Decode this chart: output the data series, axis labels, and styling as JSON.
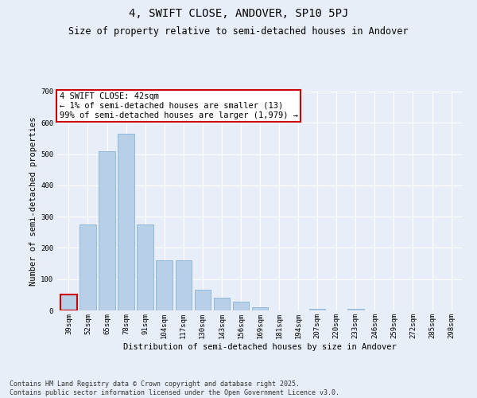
{
  "title": "4, SWIFT CLOSE, ANDOVER, SP10 5PJ",
  "subtitle": "Size of property relative to semi-detached houses in Andover",
  "xlabel": "Distribution of semi-detached houses by size in Andover",
  "ylabel": "Number of semi-detached properties",
  "categories": [
    "39sqm",
    "52sqm",
    "65sqm",
    "78sqm",
    "91sqm",
    "104sqm",
    "117sqm",
    "130sqm",
    "143sqm",
    "156sqm",
    "169sqm",
    "181sqm",
    "194sqm",
    "207sqm",
    "220sqm",
    "233sqm",
    "246sqm",
    "259sqm",
    "272sqm",
    "285sqm",
    "298sqm"
  ],
  "values": [
    52,
    275,
    510,
    565,
    275,
    160,
    160,
    65,
    40,
    28,
    10,
    0,
    0,
    5,
    0,
    5,
    0,
    0,
    0,
    0,
    0
  ],
  "bar_color": "#b8cfe8",
  "bar_edge_color": "#7aaad0",
  "highlight_bar_index": 0,
  "highlight_bar_color": "#b8cfe8",
  "highlight_bar_edge_color": "#cc0000",
  "annotation_text": "4 SWIFT CLOSE: 42sqm\n← 1% of semi-detached houses are smaller (13)\n99% of semi-detached houses are larger (1,979) →",
  "annotation_box_color": "#ffffff",
  "annotation_box_edge_color": "#cc0000",
  "ylim": [
    0,
    700
  ],
  "yticks": [
    0,
    100,
    200,
    300,
    400,
    500,
    600,
    700
  ],
  "bg_color": "#e8eef8",
  "plot_bg_color": "#e8eef8",
  "footnote": "Contains HM Land Registry data © Crown copyright and database right 2025.\nContains public sector information licensed under the Open Government Licence v3.0.",
  "title_fontsize": 10,
  "subtitle_fontsize": 8.5,
  "axis_label_fontsize": 7.5,
  "tick_fontsize": 6.5,
  "annotation_fontsize": 7.5,
  "footnote_fontsize": 6
}
